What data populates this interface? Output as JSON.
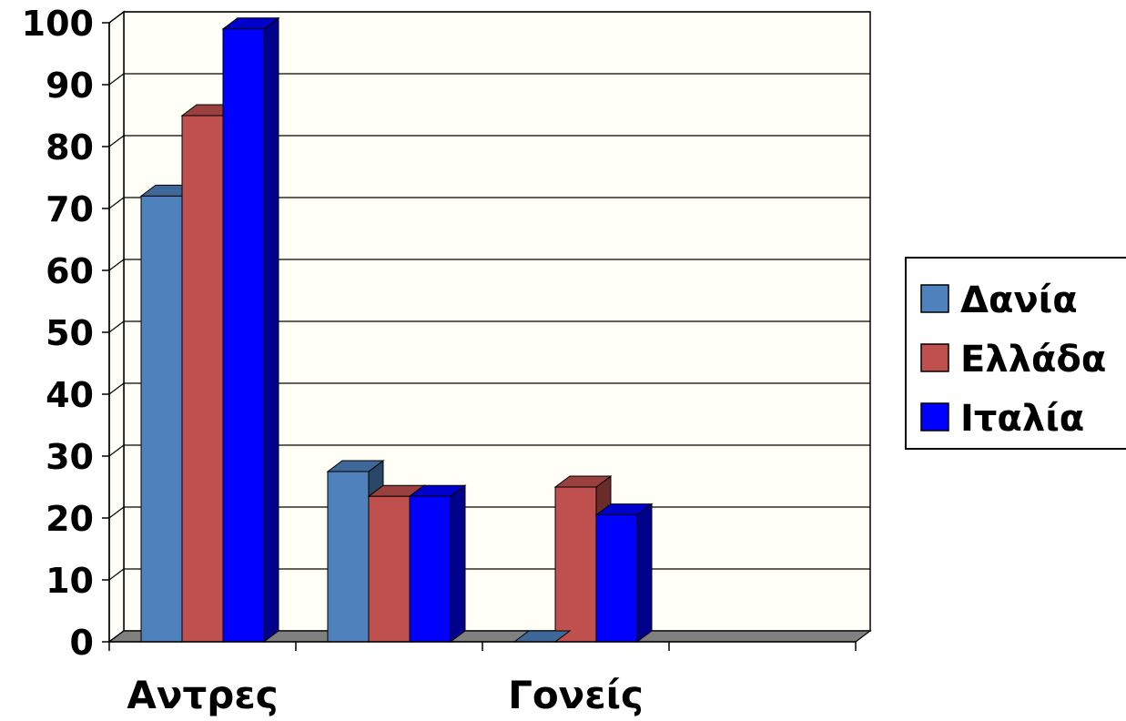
{
  "chart_data": {
    "type": "bar",
    "style": "3d-clustered-column",
    "categories": [
      "Αντρες",
      "",
      "Γονείς",
      ""
    ],
    "series": [
      {
        "name": "Δανία",
        "values": [
          72,
          27.5,
          0,
          0
        ],
        "color": "#4f81bd"
      },
      {
        "name": "Ελλάδα",
        "values": [
          85,
          23.5,
          25,
          0
        ],
        "color": "#c0504d"
      },
      {
        "name": "Ιταλία",
        "values": [
          99,
          23.5,
          20.5,
          0
        ],
        "color": "#0000ff"
      }
    ],
    "ylim": [
      0,
      100
    ],
    "yticks": [
      0,
      10,
      20,
      30,
      40,
      50,
      60,
      70,
      80,
      90,
      100
    ],
    "grid": true,
    "legend_position": "right"
  },
  "colors": {
    "wall": "#fffff8",
    "floor": "#808080",
    "gridline": "#000000"
  }
}
